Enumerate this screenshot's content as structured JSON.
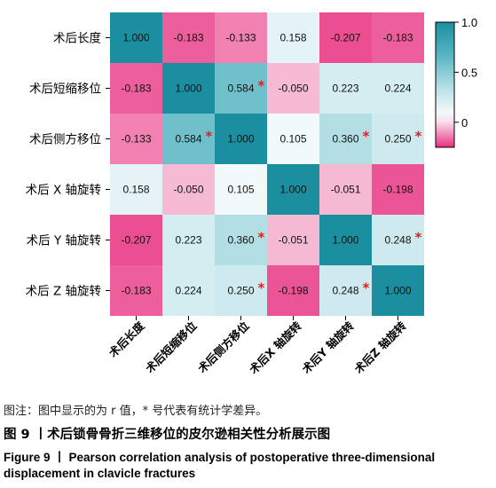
{
  "chart_data": {
    "type": "heatmap",
    "rows": [
      "术后长度",
      "术后短缩移位",
      "术后侧方移位",
      "术后 X 轴旋转",
      "术后 Y 轴旋转",
      "术后 Z 轴旋转"
    ],
    "columns": [
      "术后长度",
      "术后短缩移位",
      "术后侧方移位",
      "术后X 轴旋转",
      "术后Y 轴旋转",
      "术后Z 轴旋转"
    ],
    "values": [
      [
        1.0,
        -0.183,
        -0.133,
        0.158,
        -0.207,
        -0.183
      ],
      [
        -0.183,
        1.0,
        0.584,
        -0.05,
        0.223,
        0.224
      ],
      [
        -0.133,
        0.584,
        1.0,
        0.105,
        0.36,
        0.25
      ],
      [
        0.158,
        -0.05,
        0.105,
        1.0,
        -0.051,
        -0.198
      ],
      [
        -0.207,
        0.223,
        0.36,
        -0.051,
        1.0,
        0.248
      ],
      [
        -0.183,
        0.224,
        0.25,
        -0.198,
        0.248,
        1.0
      ]
    ],
    "labels": [
      [
        "1.000",
        "-0.183",
        "-0.133",
        "0.158",
        "-0.207",
        "-0.183"
      ],
      [
        "-0.183",
        "1.000",
        "0.584",
        "-0.050",
        "0.223",
        "0.224"
      ],
      [
        "-0.133",
        "0.584",
        "1.000",
        "0.105",
        "0.360",
        "0.250"
      ],
      [
        "0.158",
        "-0.050",
        "0.105",
        "1.000",
        "-0.051",
        "-0.198"
      ],
      [
        "-0.207",
        "0.223",
        "0.360",
        "-0.051",
        "1.000",
        "0.248"
      ],
      [
        "-0.183",
        "0.224",
        "0.250",
        "-0.198",
        "0.248",
        "1.000"
      ]
    ],
    "significant": [
      [
        false,
        false,
        false,
        false,
        false,
        false
      ],
      [
        false,
        false,
        true,
        false,
        false,
        false
      ],
      [
        false,
        true,
        false,
        false,
        true,
        true
      ],
      [
        false,
        false,
        false,
        false,
        false,
        false
      ],
      [
        false,
        false,
        true,
        false,
        false,
        true
      ],
      [
        false,
        false,
        true,
        false,
        true,
        false
      ]
    ],
    "significance_marker": "*",
    "colorbar": {
      "range": [
        -0.25,
        1.0
      ],
      "ticks": [
        1.0,
        0.5,
        0
      ],
      "tick_labels": [
        "1.0",
        "0.5",
        "0"
      ],
      "stops": [
        {
          "value": -0.25,
          "color": "#e8317f"
        },
        {
          "value": 0.0,
          "color": "#f9dcea"
        },
        {
          "value": 0.1,
          "color": "#f2fafb"
        },
        {
          "value": 0.35,
          "color": "#b6dfe5"
        },
        {
          "value": 0.65,
          "color": "#5cb7c4"
        },
        {
          "value": 1.0,
          "color": "#1b8ea0"
        }
      ]
    },
    "marker_color": "#e02020",
    "grid": false,
    "legend_position": "right"
  },
  "captions": {
    "note": "图注：图中显示的为 r 值，* 号代表有统计学差异。",
    "figure_cn": "图 9 丨术后锁骨骨折三维移位的皮尔逊相关性分析展示图",
    "figure_en_line1": "Figure 9 丨 Pearson correlation analysis of postoperative three-dimensional",
    "figure_en_line2": "displacement in clavicle fractures"
  }
}
